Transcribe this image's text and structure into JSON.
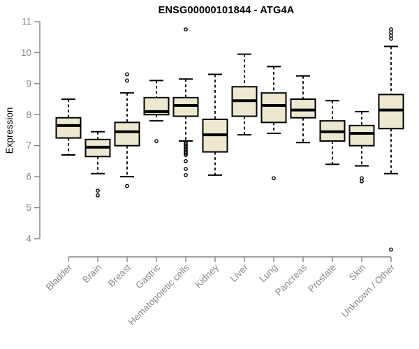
{
  "title": "ENSG00000101844 - ATG4A",
  "colors": {
    "background": "#FFFFFF",
    "box_fill": "#EDE8D0",
    "box_stroke": "#000000",
    "median": "#000000",
    "whisker": "#000000",
    "outlier": "#000000",
    "axis": "#828282",
    "tick_label": "#8A8A8A",
    "axis_label": "#8A8A8A",
    "title_color": "#000000"
  },
  "chart_data": {
    "type": "boxplot",
    "title": "ENSG00000101844 - ATG4A",
    "xlabel": "",
    "ylabel": "Expression",
    "ylim": [
      4,
      11
    ],
    "yticks": [
      4,
      5,
      6,
      7,
      8,
      9,
      10,
      11
    ],
    "grid": false,
    "legend": false,
    "x_tick_rotation_deg": 45,
    "categories": [
      "Bladder",
      "Brain",
      "Breast",
      "Gastric",
      "Hematopoietic cells",
      "Kidney",
      "Liver",
      "Lung",
      "Pancreas",
      "Prostate",
      "Skin",
      "Unknown / Other"
    ],
    "series": [
      {
        "name": "Bladder",
        "whisker_low": 6.7,
        "q1": 7.25,
        "median": 7.65,
        "q3": 7.9,
        "whisker_high": 8.5,
        "outliers": []
      },
      {
        "name": "Brain",
        "whisker_low": 6.1,
        "q1": 6.65,
        "median": 6.95,
        "q3": 7.2,
        "whisker_high": 7.45,
        "outliers": [
          5.55,
          5.4
        ]
      },
      {
        "name": "Breast",
        "whisker_low": 6.0,
        "q1": 7.0,
        "median": 7.45,
        "q3": 7.75,
        "whisker_high": 8.7,
        "outliers": [
          9.3,
          9.1,
          5.7
        ]
      },
      {
        "name": "Gastric",
        "whisker_low": 7.8,
        "q1": 8.0,
        "median": 8.1,
        "q3": 8.55,
        "whisker_high": 9.1,
        "outliers": [
          7.15
        ]
      },
      {
        "name": "Hematopoietic cells",
        "whisker_low": 7.15,
        "q1": 7.95,
        "median": 8.3,
        "q3": 8.55,
        "whisker_high": 9.15,
        "outliers": [
          10.75,
          7.1,
          7.05,
          7.0,
          6.95,
          6.9,
          6.85,
          6.8,
          6.75,
          6.7,
          6.5,
          6.25,
          6.05
        ]
      },
      {
        "name": "Kidney",
        "whisker_low": 6.05,
        "q1": 6.8,
        "median": 7.35,
        "q3": 7.85,
        "whisker_high": 9.3,
        "outliers": []
      },
      {
        "name": "Liver",
        "whisker_low": 7.35,
        "q1": 7.95,
        "median": 8.45,
        "q3": 8.9,
        "whisker_high": 9.95,
        "outliers": []
      },
      {
        "name": "Lung",
        "whisker_low": 7.4,
        "q1": 7.75,
        "median": 8.3,
        "q3": 8.7,
        "whisker_high": 9.55,
        "outliers": [
          5.95
        ]
      },
      {
        "name": "Pancreas",
        "whisker_low": 7.1,
        "q1": 7.9,
        "median": 8.15,
        "q3": 8.5,
        "whisker_high": 9.25,
        "outliers": []
      },
      {
        "name": "Prostate",
        "whisker_low": 6.4,
        "q1": 7.15,
        "median": 7.45,
        "q3": 7.8,
        "whisker_high": 8.45,
        "outliers": []
      },
      {
        "name": "Skin",
        "whisker_low": 6.35,
        "q1": 7.0,
        "median": 7.4,
        "q3": 7.65,
        "whisker_high": 8.1,
        "outliers": [
          5.95,
          5.85
        ]
      },
      {
        "name": "Unknown / Other",
        "whisker_low": 6.1,
        "q1": 7.55,
        "median": 8.15,
        "q3": 8.65,
        "whisker_high": 10.2,
        "outliers": [
          10.75,
          10.65,
          10.55,
          10.45,
          3.65
        ]
      }
    ]
  }
}
